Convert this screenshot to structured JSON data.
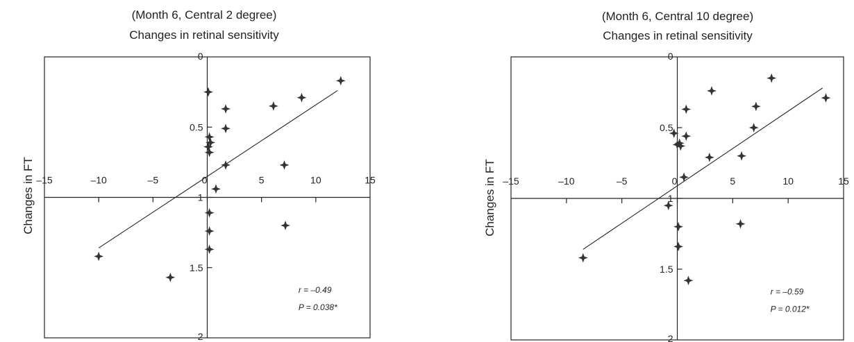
{
  "chart_data": [
    {
      "type": "scatter",
      "subtitle": "(Month 6, Central 2 degree)",
      "title": "Changes in retinal sensitivity",
      "ylabel": "Changes in FT",
      "xlim": [
        -15,
        15
      ],
      "ylim": [
        0,
        2
      ],
      "y_inverted": true,
      "x_ticks": [
        "–15",
        "–10",
        "–5",
        "0",
        "5",
        "10",
        "15"
      ],
      "y_ticks": [
        "0",
        "0.5",
        "1",
        "1.5",
        "2"
      ],
      "grid": false,
      "points": [
        {
          "x": 12.3,
          "y": 0.17
        },
        {
          "x": 8.7,
          "y": 0.29
        },
        {
          "x": 6.1,
          "y": 0.35
        },
        {
          "x": 0.1,
          "y": 0.25
        },
        {
          "x": 1.7,
          "y": 0.37
        },
        {
          "x": 1.7,
          "y": 0.51
        },
        {
          "x": 0.2,
          "y": 0.57
        },
        {
          "x": 0.3,
          "y": 0.61
        },
        {
          "x": 0.1,
          "y": 0.64
        },
        {
          "x": 0.2,
          "y": 0.68
        },
        {
          "x": 1.7,
          "y": 0.77
        },
        {
          "x": 7.1,
          "y": 0.77
        },
        {
          "x": 0.8,
          "y": 0.94
        },
        {
          "x": 0.2,
          "y": 1.11
        },
        {
          "x": 0.2,
          "y": 1.24
        },
        {
          "x": 0.2,
          "y": 1.37
        },
        {
          "x": 7.2,
          "y": 1.2
        },
        {
          "x": -10.0,
          "y": 1.42
        },
        {
          "x": -3.4,
          "y": 1.57
        }
      ],
      "trendline": {
        "x": [
          -10.0,
          12.0
        ],
        "y": [
          1.36,
          0.24
        ]
      },
      "annotations": [
        "r = –0.49",
        "P = 0.038*"
      ]
    },
    {
      "type": "scatter",
      "subtitle": "(Month 6, Central 10 degree)",
      "title": "Changes in retinal sensitivity",
      "ylabel": "Changes in FT",
      "xlim": [
        -15,
        15
      ],
      "ylim": [
        0,
        2
      ],
      "y_inverted": true,
      "x_ticks": [
        "–15",
        "–10",
        "–5",
        "0",
        "5",
        "10",
        "15"
      ],
      "y_ticks": [
        "0",
        "0.5",
        "1",
        "1.5",
        "2"
      ],
      "grid": false,
      "points": [
        {
          "x": 8.5,
          "y": 0.15
        },
        {
          "x": 13.4,
          "y": 0.29
        },
        {
          "x": 3.1,
          "y": 0.24
        },
        {
          "x": 7.1,
          "y": 0.35
        },
        {
          "x": 0.8,
          "y": 0.37
        },
        {
          "x": 6.9,
          "y": 0.5
        },
        {
          "x": -0.3,
          "y": 0.54
        },
        {
          "x": 0.8,
          "y": 0.56
        },
        {
          "x": 0.0,
          "y": 0.62
        },
        {
          "x": 0.3,
          "y": 0.63
        },
        {
          "x": 0.2,
          "y": 0.61
        },
        {
          "x": 2.9,
          "y": 0.71
        },
        {
          "x": 5.8,
          "y": 0.7
        },
        {
          "x": 0.6,
          "y": 0.85
        },
        {
          "x": -0.8,
          "y": 1.05
        },
        {
          "x": 0.1,
          "y": 1.2
        },
        {
          "x": 0.1,
          "y": 1.34
        },
        {
          "x": 5.7,
          "y": 1.18
        },
        {
          "x": -8.5,
          "y": 1.42
        },
        {
          "x": 1.0,
          "y": 1.58
        }
      ],
      "trendline": {
        "x": [
          -8.5,
          13.1
        ],
        "y": [
          1.36,
          0.22
        ]
      },
      "annotations": [
        "r = –0.59",
        "P = 0.012*"
      ]
    }
  ]
}
